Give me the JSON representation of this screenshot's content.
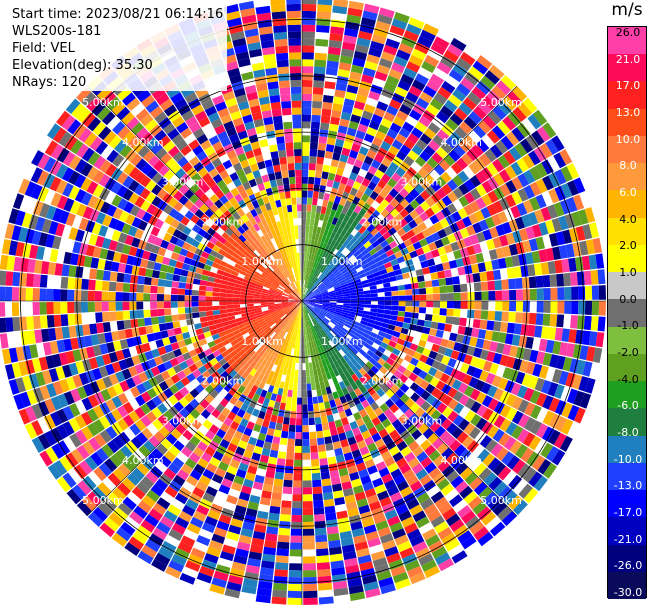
{
  "header": {
    "start_time": "Start time: 2023/08/21 06:14:16",
    "device": "WLS200s-181",
    "field": "Field: VEL",
    "elevation": "Elevation(deg): 35.30",
    "nrays": "NRays: 120"
  },
  "colorbar": {
    "unit": "m/s",
    "labels": [
      "26.0",
      "21.0",
      "17.0",
      "13.0",
      "10.0",
      "8.0",
      "6.0",
      "4.0",
      "2.0",
      "1.0",
      "0.0",
      "-1.0",
      "-2.0",
      "-4.0",
      "-6.0",
      "-8.0",
      "-10.0",
      "-13.0",
      "-17.0",
      "-21.0",
      "-26.0",
      "-30.0"
    ],
    "colors": [
      "#ff3fa8",
      "#ff0a5a",
      "#ff2020",
      "#ff4d1a",
      "#ff7a3c",
      "#ff9a3c",
      "#ffb400",
      "#ffe000",
      "#ffff00",
      "#c8c8c8",
      "#707070",
      "#7fbf3f",
      "#5fa020",
      "#1f9f1f",
      "#1f7f3f",
      "#1f7fbf",
      "#1f3fff",
      "#0000ff",
      "#0000c0",
      "#00007f",
      "#0a0a5a"
    ]
  },
  "chart_data": {
    "type": "heatmap",
    "projection": "polar-ppi",
    "field": "VEL",
    "unit": "m/s",
    "nrays": 120,
    "elevation_deg": 35.3,
    "range_rings_km": [
      1.0,
      2.0,
      3.0,
      4.0,
      5.0
    ],
    "range_ring_labels": [
      "1.00km",
      "2.00km",
      "3.00km",
      "4.00km",
      "5.00km"
    ],
    "value_range": [
      -30.0,
      26.0
    ],
    "flow_pattern": {
      "positive_sector_azimuth_deg": [
        200,
        340
      ],
      "negative_sector_azimuth_deg": [
        20,
        160
      ],
      "valid_data_max_range_km": 1.8
    }
  }
}
